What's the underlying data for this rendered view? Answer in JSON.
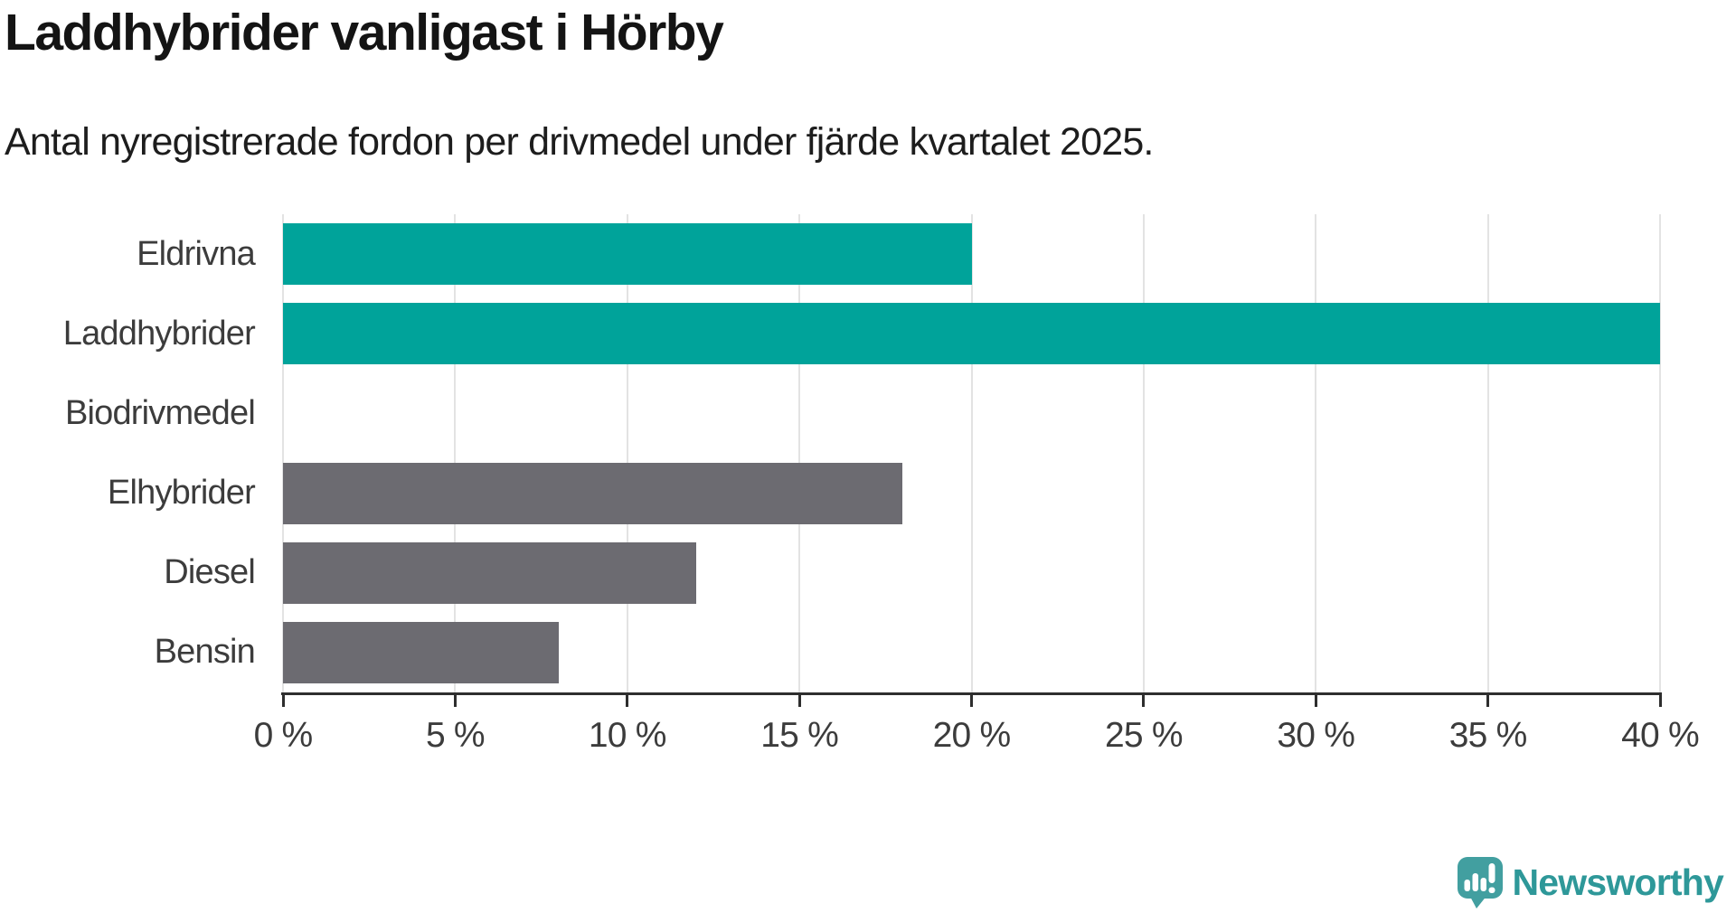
{
  "header": {
    "title": "Laddhybrider vanligast i Hörby",
    "subtitle": "Antal nyregistrerade fordon per drivmedel under fjärde kvartalet 2025."
  },
  "chart_data": {
    "type": "bar",
    "orientation": "horizontal",
    "categories": [
      "Eldrivna",
      "Laddhybrider",
      "Biodrivmedel",
      "Elhybrider",
      "Diesel",
      "Bensin"
    ],
    "values": [
      20,
      40,
      0,
      18,
      12,
      8
    ],
    "unit": "%",
    "bar_colors": [
      "#00a39a",
      "#00a39a",
      "#00a39a",
      "#6c6b71",
      "#6c6b71",
      "#6c6b71"
    ],
    "highlight_color": "#00a39a",
    "default_color": "#6c6b71",
    "xlim": [
      0,
      40
    ],
    "x_ticks": [
      0,
      5,
      10,
      15,
      20,
      25,
      30,
      35,
      40
    ],
    "x_tick_labels": [
      "0 %",
      "5 %",
      "10 %",
      "15 %",
      "20 %",
      "25 %",
      "30 %",
      "35 %",
      "40 %"
    ],
    "grid": "vertical",
    "gridline_color": "#e3e3e3",
    "axis_color": "#2e2e2e",
    "legend": "none",
    "title": "Laddhybrider vanligast i Hörby",
    "xlabel": "",
    "ylabel": ""
  },
  "branding": {
    "logo_text": "Newsworthy",
    "logo_text_color": "#2e9899",
    "icon_color": "#429fa0",
    "icon_name": "newsworthy-speech-bubble-chart-icon"
  }
}
